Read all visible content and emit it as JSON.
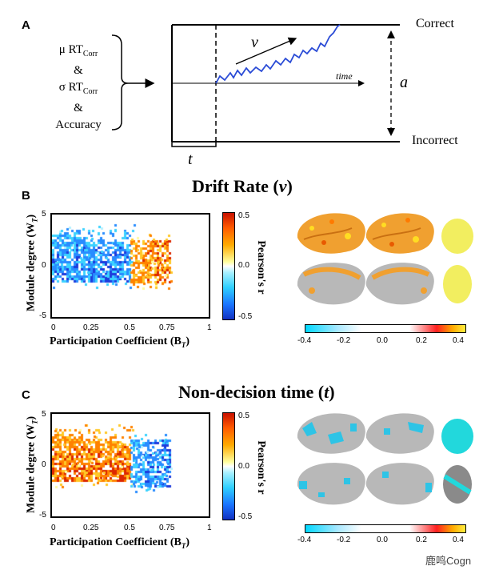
{
  "panel_a": {
    "letter": "A",
    "mu_rt": "μ RT",
    "sigma_rt": "σ RT",
    "sub_corr": "Corr",
    "amp1": "&",
    "amp2": "&",
    "accuracy": "Accuracy",
    "correct": "Correct",
    "incorrect": "Incorrect",
    "v_label": "v",
    "time_label": "time",
    "a_label": "a",
    "t_label": "t"
  },
  "panel_b": {
    "letter": "B",
    "title_text": "Drift Rate (",
    "title_sym": "v",
    "title_close": ")",
    "chart_data": {
      "type": "heatmap",
      "xlabel": "Participation Coefficient (B",
      "xlabel_sub": "T",
      "ylabel": "Module degree (W",
      "ylabel_sub": "T",
      "x_ticks": [
        "0",
        "0.25",
        "0.5",
        "0.75",
        "1"
      ],
      "y_ticks": [
        "5",
        "0",
        "-5"
      ],
      "xlim": [
        0,
        1
      ],
      "ylim": [
        -5,
        5
      ],
      "colorbar_label": "Pearson's r",
      "colorbar_ticks": [
        "0.5",
        "0.0",
        "-0.5"
      ],
      "clim": [
        -0.5,
        0.5
      ],
      "clusters": [
        {
          "name": "negative",
          "x_range": [
            0.0,
            0.5
          ],
          "y_range": [
            -1.5,
            3.5
          ],
          "sign": -1
        },
        {
          "name": "positive",
          "x_range": [
            0.5,
            0.75
          ],
          "y_range": [
            -1.5,
            2.5
          ],
          "sign": 1
        }
      ]
    },
    "brain_colorbar_ticks": [
      "-0.4",
      "-0.2",
      "0.0",
      "0.2",
      "0.4"
    ]
  },
  "panel_c": {
    "letter": "C",
    "title_text": "Non-decision time (",
    "title_sym": "t",
    "title_close": ")",
    "chart_data": {
      "type": "heatmap",
      "xlabel": "Participation Coefficient (B",
      "xlabel_sub": "T",
      "ylabel": "Module degree (W",
      "ylabel_sub": "T",
      "x_ticks": [
        "0",
        "0.25",
        "0.5",
        "0.75",
        "1"
      ],
      "y_ticks": [
        "5",
        "0",
        "-5"
      ],
      "xlim": [
        0,
        1
      ],
      "ylim": [
        -5,
        5
      ],
      "colorbar_label": "Pearson's r",
      "colorbar_ticks": [
        "0.5",
        "0.0",
        "-0.5"
      ],
      "clim": [
        -0.5,
        0.5
      ],
      "clusters": [
        {
          "name": "positive",
          "x_range": [
            0.0,
            0.5
          ],
          "y_range": [
            -1.5,
            3.5
          ],
          "sign": 1
        },
        {
          "name": "negative",
          "x_range": [
            0.5,
            0.75
          ],
          "y_range": [
            -2.0,
            2.5
          ],
          "sign": -1
        }
      ]
    },
    "brain_colorbar_ticks": [
      "-0.4",
      "-0.2",
      "0.0",
      "0.2",
      "0.4"
    ]
  },
  "watermark": "鹿鸣Cogn"
}
